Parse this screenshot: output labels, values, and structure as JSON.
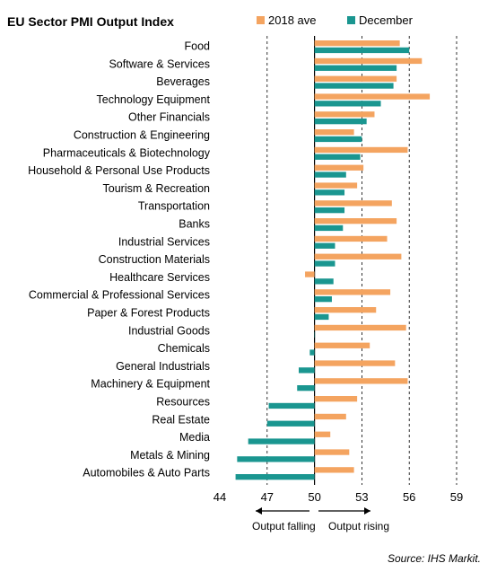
{
  "chart_data": {
    "type": "bar",
    "orientation": "horizontal",
    "title": "EU Sector PMI Output Index",
    "xlim": [
      44,
      59
    ],
    "x_ticks": [
      "44",
      "47",
      "50",
      "53",
      "56",
      "59"
    ],
    "baseline": 50,
    "grid": "vertical dashed",
    "legend_position": "top-right",
    "categories": [
      "Food",
      "Software & Services",
      "Beverages",
      "Technology Equipment",
      "Other Financials",
      "Construction & Engineering",
      "Pharmaceuticals & Biotechnology",
      "Household & Personal Use Products",
      "Tourism & Recreation",
      "Transportation",
      "Banks",
      "Industrial Services",
      "Construction Materials",
      "Healthcare Services",
      "Commercial & Professional Services",
      "Paper & Forest Products",
      "Industrial Goods",
      "Chemicals",
      "General Industrials",
      "Machinery & Equipment",
      "Resources",
      "Real Estate",
      "Media",
      "Metals & Mining",
      "Automobiles & Auto Parts"
    ],
    "series": [
      {
        "name": "2018 ave",
        "color": "#F4A460",
        "values": [
          55.4,
          56.8,
          55.2,
          57.3,
          53.8,
          52.5,
          55.9,
          53.1,
          52.7,
          54.9,
          55.2,
          54.6,
          55.5,
          49.4,
          54.8,
          53.9,
          55.8,
          53.5,
          55.1,
          55.9,
          52.7,
          52.0,
          51.0,
          52.2,
          52.5
        ]
      },
      {
        "name": "December",
        "color": "#1A9690",
        "values": [
          56.0,
          55.2,
          55.0,
          54.2,
          53.3,
          53.0,
          52.9,
          52.0,
          51.9,
          51.9,
          51.8,
          51.3,
          51.3,
          51.2,
          51.1,
          50.9,
          50.0,
          49.7,
          49.0,
          48.9,
          47.1,
          47.0,
          45.8,
          45.1,
          45.0
        ]
      }
    ],
    "annotations": {
      "left": "Output falling",
      "right": "Output rising"
    },
    "source": "Source: IHS Markit."
  }
}
